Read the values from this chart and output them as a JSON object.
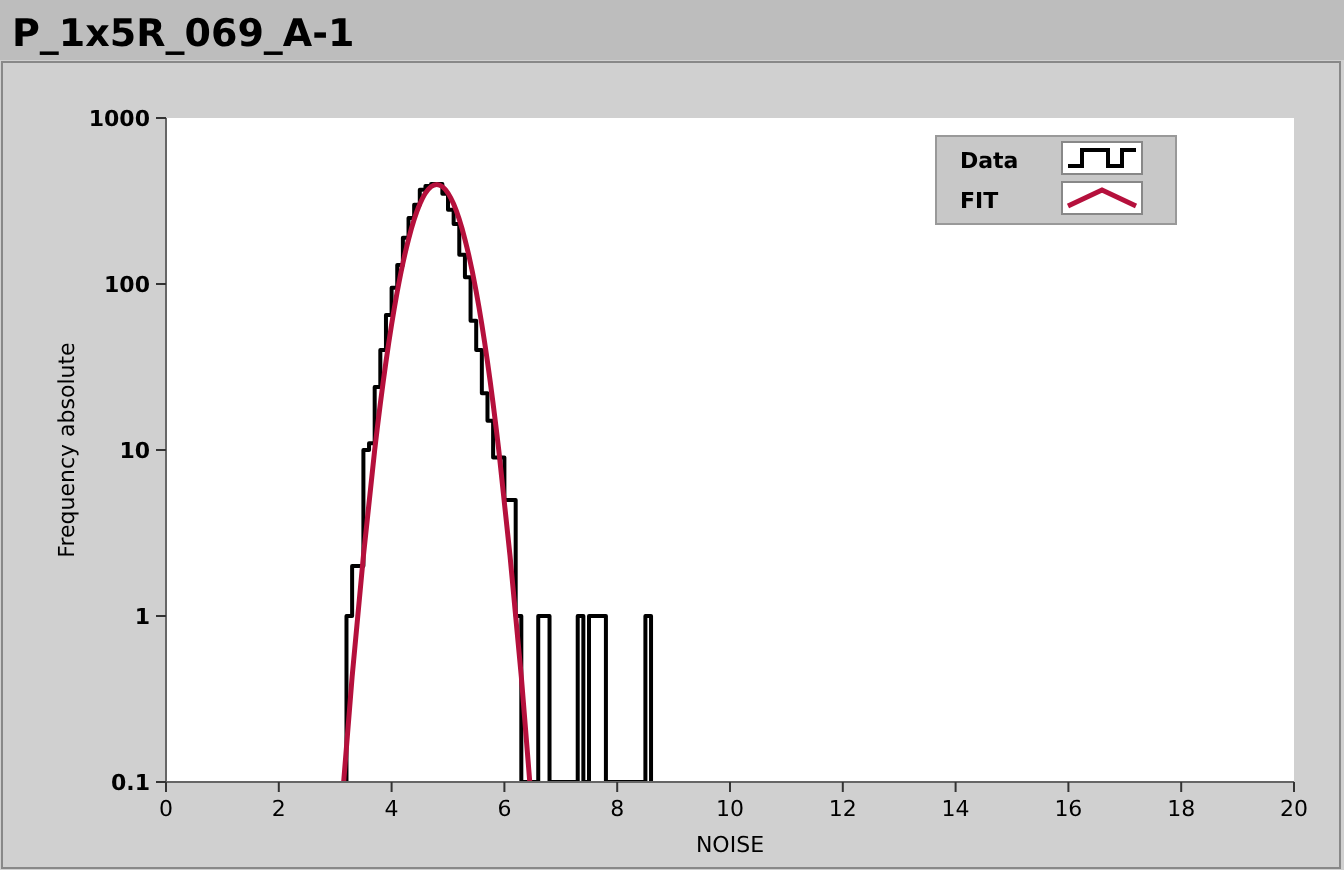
{
  "chart_data": {
    "type": "histogram",
    "title": "P_1x5R_069_A-1",
    "xlabel": "NOISE",
    "ylabel": "Frequency absolute",
    "xlim": [
      0,
      20
    ],
    "xticks": [
      0,
      2,
      4,
      6,
      8,
      10,
      12,
      14,
      16,
      18,
      20
    ],
    "ylim": [
      0.1,
      1000
    ],
    "yticks": [
      0.1,
      1,
      10,
      100,
      1000
    ],
    "log": "y",
    "grid": false,
    "legend": "top right",
    "series": [
      {
        "name": "Data",
        "color": "#000000",
        "bins": [
          3.2,
          3.3,
          3.4,
          3.5,
          3.6,
          3.7,
          3.8,
          3.9,
          4.0,
          4.1,
          4.2,
          4.3,
          4.4,
          4.5,
          4.6,
          4.7,
          4.8,
          4.9,
          5.0,
          5.1,
          5.2,
          5.3,
          5.4,
          5.5,
          5.6,
          5.7,
          5.8,
          5.9,
          6.0,
          6.1,
          6.2,
          6.3,
          6.4,
          6.5,
          6.6,
          6.7,
          6.8,
          6.9,
          7.0,
          7.1,
          7.2,
          7.3,
          7.4,
          7.5,
          7.6,
          7.7,
          7.8,
          7.9,
          8.0,
          8.1,
          8.2,
          8.3,
          8.4,
          8.5,
          8.6
        ],
        "values": [
          1,
          2,
          2,
          10,
          11,
          24,
          40,
          65,
          95,
          130,
          190,
          250,
          300,
          370,
          390,
          400,
          400,
          350,
          280,
          230,
          150,
          110,
          60,
          40,
          22,
          15,
          9,
          9,
          5,
          5,
          1,
          null,
          null,
          null,
          1,
          1,
          null,
          null,
          null,
          null,
          null,
          1,
          null,
          1,
          1,
          1,
          null,
          null,
          null,
          null,
          null,
          null,
          null,
          1
        ]
      },
      {
        "name": "FIT",
        "type": "line",
        "color": "#b5103c",
        "x": [
          3.15,
          3.3,
          3.5,
          3.7,
          3.9,
          4.1,
          4.3,
          4.5,
          4.7,
          4.8,
          4.9,
          5.1,
          5.3,
          5.5,
          5.7,
          5.9,
          6.1,
          6.3,
          6.45
        ],
        "values": [
          0.1,
          0.43,
          2.3,
          10,
          34,
          90,
          186,
          303,
          386,
          398,
          386,
          303,
          186,
          90,
          34,
          10,
          2.3,
          0.43,
          0.1
        ]
      }
    ]
  }
}
